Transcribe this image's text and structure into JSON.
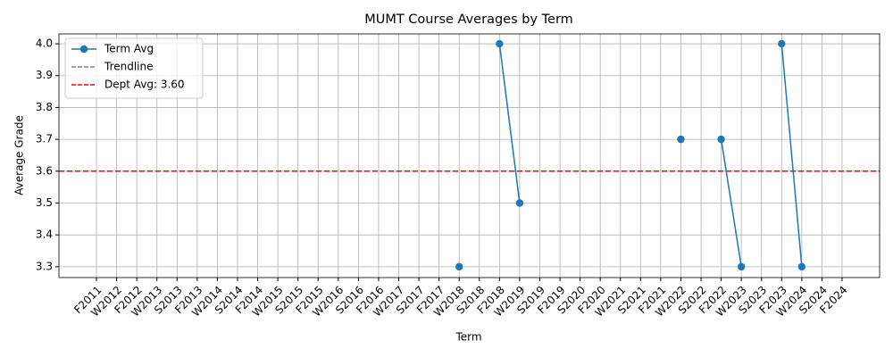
{
  "chart_data": {
    "type": "line",
    "title": "MUMT Course Averages by Term",
    "xlabel": "Term",
    "ylabel": "Average Grade",
    "categories": [
      "F2011",
      "W2012",
      "F2012",
      "W2013",
      "S2013",
      "F2013",
      "W2014",
      "S2014",
      "F2014",
      "W2015",
      "S2015",
      "F2015",
      "W2016",
      "S2016",
      "F2016",
      "W2017",
      "S2017",
      "F2017",
      "W2018",
      "S2018",
      "F2018",
      "W2019",
      "S2019",
      "F2019",
      "S2020",
      "F2020",
      "W2021",
      "S2021",
      "F2021",
      "W2022",
      "S2022",
      "F2022",
      "W2023",
      "S2023",
      "F2023",
      "W2024",
      "S2024",
      "F2024"
    ],
    "series": [
      {
        "name": "Term Avg",
        "color": "#1f77b4",
        "values": [
          null,
          null,
          null,
          null,
          null,
          null,
          null,
          null,
          null,
          null,
          null,
          null,
          null,
          null,
          null,
          null,
          null,
          null,
          3.3,
          null,
          4.0,
          3.5,
          null,
          null,
          null,
          null,
          null,
          null,
          null,
          3.7,
          null,
          3.7,
          3.3,
          null,
          4.0,
          3.3,
          null,
          null
        ]
      }
    ],
    "trendline": {
      "name": "Trendline",
      "color": "gray"
    },
    "hline": {
      "name": "Dept Avg: 3.60",
      "value": 3.6,
      "color": "red"
    },
    "ylim": [
      3.266,
      4.031
    ],
    "yticks": [
      3.3,
      3.4,
      3.5,
      3.6,
      3.7,
      3.8,
      3.9,
      {
        "value": 4,
        "label": "4.0"
      }
    ],
    "grid": true,
    "legend": "upper left"
  }
}
